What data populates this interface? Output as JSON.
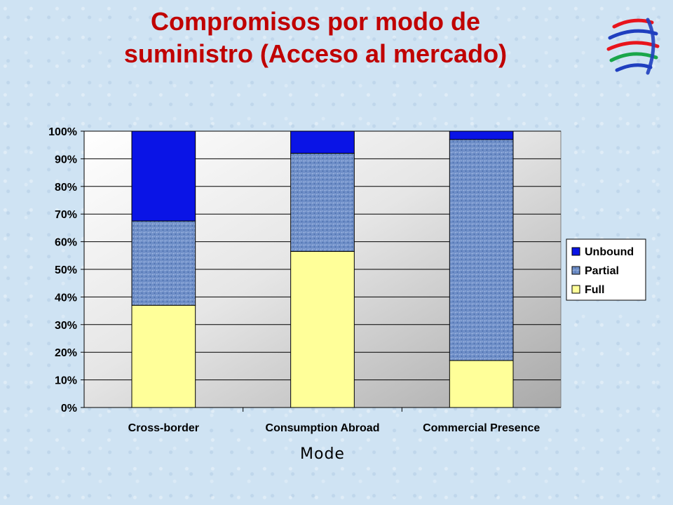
{
  "title_line1": "Compromisos por modo de",
  "title_line2": "suministro (Acceso al mercado)",
  "logo_icon": "wto-logo-icon",
  "colors": {
    "title": "#c00000",
    "unbound": "#0a14e6",
    "partial": "#6f8fc8",
    "full": "#ffff99",
    "logo_red": "#e8141c",
    "logo_blue": "#1f3fbf",
    "logo_green": "#1aa64a"
  },
  "chart_data": {
    "type": "bar",
    "stacked": true,
    "percent_stacked": true,
    "categories": [
      "Cross-border",
      "Consumption Abroad",
      "Commercial Presence"
    ],
    "series": [
      {
        "name": "Full",
        "values": [
          37,
          56.5,
          17
        ]
      },
      {
        "name": "Partial",
        "values": [
          30.5,
          35.5,
          80
        ]
      },
      {
        "name": "Unbound",
        "values": [
          32.5,
          8,
          3
        ]
      }
    ],
    "yticks": [
      "0%",
      "10%",
      "20%",
      "30%",
      "40%",
      "50%",
      "60%",
      "70%",
      "80%",
      "90%",
      "100%"
    ],
    "ylim": [
      0,
      100
    ],
    "xlabel": "Mode",
    "ylabel": "",
    "grid": true,
    "legend_position": "right",
    "legend_order": [
      "Unbound",
      "Partial",
      "Full"
    ]
  }
}
